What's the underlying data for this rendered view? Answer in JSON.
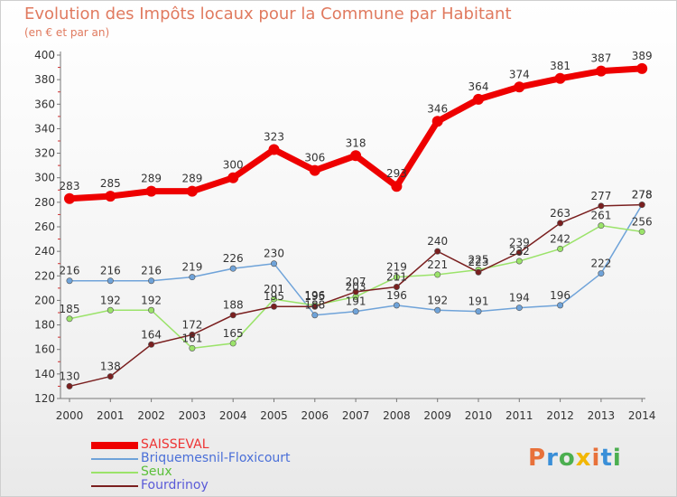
{
  "header": {
    "title": "Evolution des Impôts locaux pour la Commune par Habitant",
    "subtitle": "(en € et par an)"
  },
  "logo": {
    "text": "Proxiti",
    "colors": [
      "#e8713a",
      "#3a8fd8",
      "#4caf50",
      "#f2b705",
      "#e8713a",
      "#3a8fd8",
      "#4caf50"
    ]
  },
  "chart_data": {
    "type": "line",
    "title": "Evolution des Impôts locaux pour la Commune par Habitant",
    "subtitle": "(en € et par an)",
    "x": [
      "2000",
      "2001",
      "2002",
      "2003",
      "2004",
      "2005",
      "2006",
      "2007",
      "2008",
      "2009",
      "2010",
      "2011",
      "2012",
      "2013",
      "2014"
    ],
    "yticks": [
      120,
      140,
      160,
      180,
      200,
      220,
      240,
      260,
      280,
      300,
      320,
      340,
      360,
      380,
      400
    ],
    "ylim": [
      120,
      400
    ],
    "grid": false,
    "legend_position": "bottom-left",
    "series": [
      {
        "name": "SAISSEVAL",
        "color": "#ee0000",
        "width": 7,
        "values": [
          283,
          285,
          289,
          289,
          300,
          323,
          306,
          318,
          293,
          346,
          364,
          374,
          381,
          387,
          389
        ]
      },
      {
        "name": "Briquemesnil-Floxicourt",
        "color": "#6fa3d9",
        "width": 1.5,
        "values": [
          216,
          216,
          216,
          219,
          226,
          230,
          188,
          191,
          196,
          192,
          191,
          194,
          196,
          222,
          278
        ]
      },
      {
        "name": "Seux",
        "color": "#9be36a",
        "width": 1.5,
        "values": [
          185,
          192,
          192,
          161,
          165,
          201,
          196,
          203,
          219,
          221,
          225,
          232,
          242,
          261,
          256
        ]
      },
      {
        "name": "Fourdrinoy",
        "color": "#7a1f1f",
        "width": 1.5,
        "values": [
          130,
          138,
          164,
          172,
          188,
          195,
          195,
          207,
          211,
          240,
          223,
          239,
          263,
          277,
          278
        ]
      }
    ]
  }
}
